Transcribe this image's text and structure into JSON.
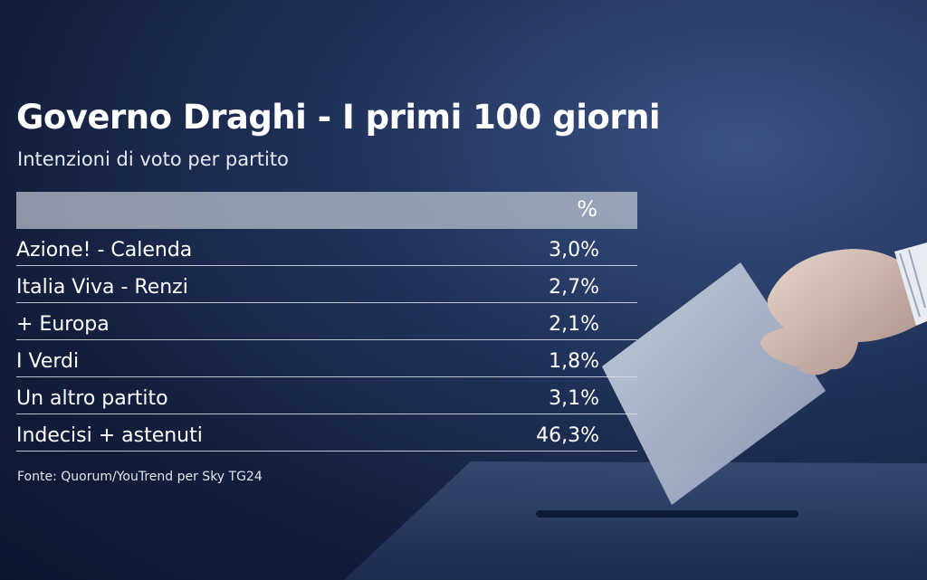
{
  "title": "Governo Draghi - I primi 100 giorni",
  "subtitle": "Intenzioni di voto per partito",
  "source": "Fonte: Quorum/YouTrend per Sky TG24",
  "chart_data": {
    "type": "table",
    "title": "Governo Draghi - I primi 100 giorni",
    "subtitle": "Intenzioni di voto per partito",
    "columns": [
      "",
      "%"
    ],
    "rows": [
      {
        "label": "Azione! - Calenda",
        "value": 3.0,
        "display": "3,0%"
      },
      {
        "label": "Italia Viva - Renzi",
        "value": 2.7,
        "display": "2,7%"
      },
      {
        "label": "+ Europa",
        "value": 2.1,
        "display": "2,1%"
      },
      {
        "label": "I Verdi",
        "value": 1.8,
        "display": "1,8%"
      },
      {
        "label": "Un altro partito",
        "value": 3.1,
        "display": "3,1%"
      },
      {
        "label": "Indecisi + astenuti",
        "value": 46.3,
        "display": "46,3%"
      }
    ]
  },
  "colors": {
    "background": "#1b2a4f",
    "header_bar": "#c8ced8",
    "text": "#ffffff"
  }
}
